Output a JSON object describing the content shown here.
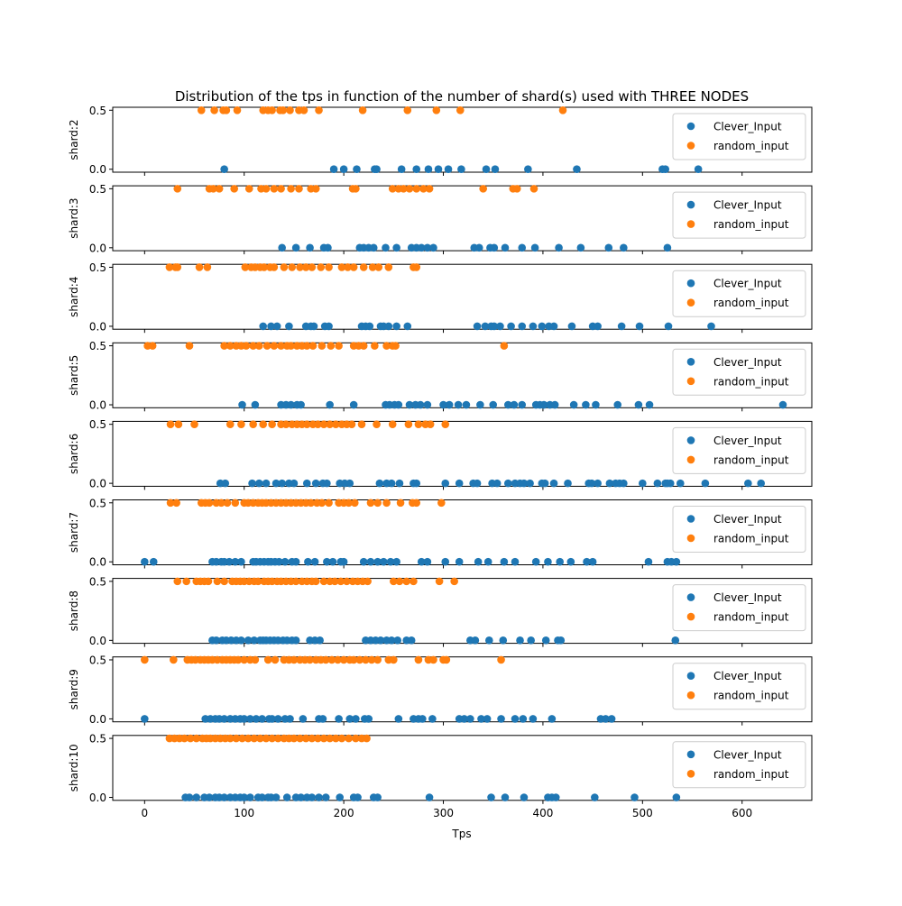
{
  "figure": {
    "title": "Distribution of the tps in function of the number of shard(s) used with THREE NODES",
    "xlabel": "Tps"
  },
  "colors": {
    "clever": "#1f77b4",
    "random": "#ff7f0e"
  },
  "chart_data": {
    "type": "scatter",
    "title": "Distribution of the tps in function of the number of shard(s) used with THREE NODES",
    "xlabel": "Tps",
    "xlim": [
      -32,
      670
    ],
    "xticks": [
      0,
      100,
      200,
      300,
      400,
      500,
      600
    ],
    "ylim": [
      -0.025,
      0.525
    ],
    "yticks": [
      0.0,
      0.5
    ],
    "legend": {
      "position": "upper right",
      "entries": [
        "Clever_Input",
        "random_input"
      ]
    },
    "panels": [
      {
        "ylabel": "shard:2",
        "series": [
          {
            "name": "Clever_Input",
            "y": 0.0,
            "x": [
              80,
              190,
              200,
              213,
              231,
              233,
              258,
              273,
              285,
              295,
              305,
              318,
              343,
              352,
              385,
              434,
              520,
              523,
              556
            ]
          },
          {
            "name": "random_input",
            "y": 0.5,
            "x": [
              57,
              70,
              79,
              82,
              93,
              119,
              124,
              128,
              136,
              139,
              146,
              155,
              160,
              175,
              219,
              264,
              293,
              317,
              420
            ]
          }
        ]
      },
      {
        "ylabel": "shard:3",
        "series": [
          {
            "name": "Clever_Input",
            "y": 0.0,
            "x": [
              138,
              152,
              166,
              180,
              184,
              216,
              220,
              225,
              230,
              242,
              253,
              268,
              273,
              278,
              284,
              290,
              331,
              336,
              347,
              351,
              362,
              379,
              392,
              416,
              438,
              466,
              481,
              525
            ]
          },
          {
            "name": "random_input",
            "y": 0.5,
            "x": [
              33,
              65,
              69,
              75,
              90,
              105,
              117,
              122,
              130,
              137,
              147,
              155,
              167,
              172,
              209,
              212,
              249,
              255,
              260,
              266,
              273,
              280,
              286,
              340,
              370,
              374,
              391
            ]
          }
        ]
      },
      {
        "ylabel": "shard:4",
        "series": [
          {
            "name": "Clever_Input",
            "y": 0.0,
            "x": [
              119,
              127,
              133,
              145,
              162,
              167,
              170,
              181,
              185,
              218,
              222,
              226,
              237,
              240,
              245,
              253,
              264,
              334,
              342,
              348,
              351,
              357,
              368,
              379,
              390,
              399,
              406,
              411,
              429,
              450,
              455,
              479,
              497,
              526,
              569
            ]
          },
          {
            "name": "random_input",
            "y": 0.5,
            "x": [
              25,
              31,
              33,
              55,
              63,
              101,
              107,
              111,
              116,
              120,
              126,
              130,
              140,
              148,
              156,
              162,
              168,
              177,
              185,
              198,
              204,
              210,
              220,
              229,
              235,
              245,
              270,
              273
            ]
          }
        ]
      },
      {
        "ylabel": "shard:5",
        "series": [
          {
            "name": "Clever_Input",
            "y": 0.0,
            "x": [
              98,
              111,
              137,
              142,
              147,
              153,
              157,
              186,
              210,
              242,
              246,
              251,
              255,
              266,
              272,
              277,
              284,
              300,
              306,
              315,
              323,
              337,
              350,
              365,
              371,
              379,
              393,
              397,
              401,
              407,
              412,
              431,
              443,
              453,
              475,
              496,
              507,
              641
            ]
          },
          {
            "name": "random_input",
            "y": 0.5,
            "x": [
              3,
              8,
              45,
              80,
              86,
              92,
              97,
              102,
              109,
              115,
              123,
              130,
              137,
              143,
              147,
              153,
              158,
              163,
              169,
              178,
              187,
              195,
              210,
              215,
              220,
              231,
              243,
              249,
              252,
              361
            ]
          }
        ]
      },
      {
        "ylabel": "shard:6",
        "series": [
          {
            "name": "Clever_Input",
            "y": 0.0,
            "x": [
              76,
              81,
              108,
              115,
              122,
              132,
              138,
              145,
              150,
              163,
              172,
              179,
              183,
              196,
              201,
              206,
              236,
              243,
              248,
              256,
              270,
              273,
              302,
              316,
              330,
              334,
              349,
              354,
              365,
              372,
              377,
              381,
              387,
              399,
              402,
              411,
              425,
              446,
              449,
              455,
              467,
              473,
              477,
              481,
              500,
              515,
              523,
              525,
              528,
              538,
              563,
              606,
              619
            ]
          },
          {
            "name": "random_input",
            "y": 0.5,
            "x": [
              26,
              34,
              50,
              86,
              97,
              109,
              119,
              128,
              137,
              142,
              148,
              153,
              158,
              163,
              169,
              174,
              180,
              186,
              192,
              198,
              203,
              208,
              218,
              233,
              249,
              265,
              275,
              282,
              287,
              302
            ]
          }
        ]
      },
      {
        "ylabel": "shard:7",
        "series": [
          {
            "name": "Clever_Input",
            "y": 0.0,
            "x": [
              0,
              9,
              68,
              72,
              77,
              80,
              85,
              91,
              97,
              109,
              112,
              116,
              120,
              124,
              127,
              131,
              135,
              141,
              148,
              152,
              164,
              171,
              183,
              189,
              197,
              200,
              220,
              227,
              234,
              240,
              247,
              253,
              278,
              284,
              302,
              316,
              335,
              345,
              361,
              372,
              393,
              405,
              417,
              428,
              444,
              450,
              506,
              525,
              529,
              534
            ]
          },
          {
            "name": "random_input",
            "y": 0.5,
            "x": [
              26,
              32,
              57,
              61,
              65,
              72,
              77,
              83,
              91,
              100,
              104,
              109,
              114,
              118,
              122,
              127,
              132,
              137,
              142,
              147,
              152,
              157,
              162,
              167,
              173,
              178,
              185,
              195,
              200,
              205,
              211,
              227,
              234,
              243,
              257,
              269,
              273,
              298
            ]
          }
        ]
      },
      {
        "ylabel": "shard:8",
        "series": [
          {
            "name": "Clever_Input",
            "y": 0.0,
            "x": [
              68,
              72,
              78,
              82,
              87,
              92,
              97,
              104,
              110,
              116,
              119,
              122,
              126,
              130,
              134,
              139,
              143,
              148,
              152,
              166,
              171,
              176,
              222,
              227,
              232,
              237,
              243,
              248,
              254,
              263,
              268,
              327,
              332,
              346,
              360,
              377,
              388,
              403,
              415,
              418,
              533
            ]
          },
          {
            "name": "random_input",
            "y": 0.5,
            "x": [
              33,
              42,
              52,
              56,
              60,
              64,
              73,
              80,
              88,
              92,
              96,
              100,
              105,
              110,
              114,
              120,
              124,
              128,
              133,
              137,
              142,
              147,
              152,
              158,
              163,
              168,
              172,
              180,
              186,
              191,
              197,
              203,
              209,
              214,
              219,
              224,
              250,
              256,
              263,
              270,
              296,
              311
            ]
          }
        ]
      },
      {
        "ylabel": "shard:9",
        "series": [
          {
            "name": "Clever_Input",
            "y": 0.0,
            "x": [
              0,
              61,
              66,
              71,
              75,
              80,
              86,
              91,
              96,
              100,
              106,
              112,
              118,
              125,
              128,
              134,
              141,
              146,
              159,
              175,
              179,
              195,
              206,
              212,
              221,
              225,
              255,
              270,
              275,
              279,
              289,
              316,
              321,
              327,
              338,
              344,
              358,
              372,
              380,
              390,
              409,
              458,
              463,
              469
            ]
          },
          {
            "name": "random_input",
            "y": 0.5,
            "x": [
              0,
              29,
              43,
              47,
              51,
              56,
              60,
              64,
              68,
              73,
              78,
              82,
              86,
              90,
              94,
              100,
              106,
              111,
              124,
              131,
              140,
              145,
              150,
              156,
              161,
              166,
              172,
              177,
              182,
              188,
              194,
              200,
              206,
              210,
              216,
              222,
              228,
              234,
              245,
              250,
              275,
              285,
              290,
              300,
              303,
              358
            ]
          }
        ]
      },
      {
        "ylabel": "shard:10",
        "series": [
          {
            "name": "Clever_Input",
            "y": 0.0,
            "x": [
              41,
              45,
              52,
              60,
              65,
              71,
              75,
              80,
              86,
              91,
              96,
              100,
              106,
              114,
              118,
              124,
              127,
              132,
              143,
              152,
              157,
              163,
              168,
              175,
              182,
              196,
              210,
              214,
              230,
              234,
              286,
              348,
              362,
              381,
              405,
              409,
              413,
              452,
              492,
              534
            ]
          },
          {
            "name": "random_input",
            "y": 0.5,
            "x": [
              25,
              30,
              35,
              40,
              46,
              52,
              58,
              62,
              66,
              71,
              76,
              81,
              86,
              92,
              98,
              104,
              110,
              116,
              122,
              128,
              134,
              140,
              145,
              150,
              156,
              162,
              168,
              174,
              180,
              186,
              192,
              198,
              205,
              212,
              218,
              223
            ]
          }
        ]
      }
    ]
  }
}
